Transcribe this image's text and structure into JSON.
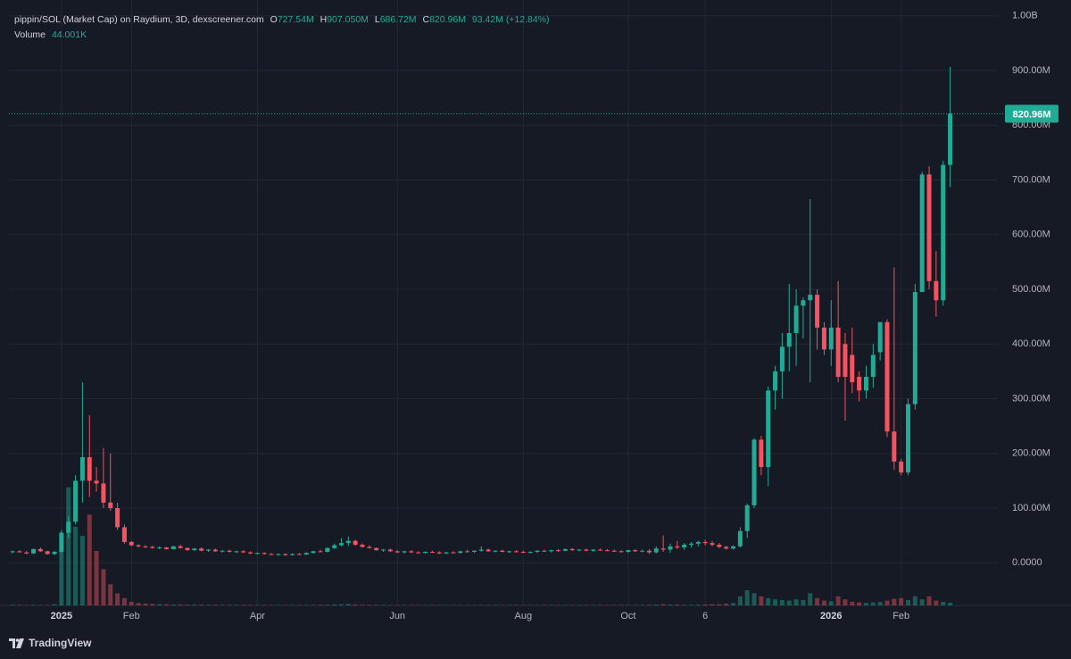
{
  "legend": {
    "title": "pippin/SOL (Market Cap) on Raydium, 3D, dexscreener.com",
    "ohlc_labels": [
      {
        "key": "O",
        "value": "727.54M"
      },
      {
        "key": "H",
        "value": "907.050M"
      },
      {
        "key": "L",
        "value": "686.72M"
      },
      {
        "key": "C",
        "value": "820.96M"
      }
    ],
    "change": "93.42M (+12.84%)",
    "volume_label": "Volume",
    "volume_value": "44.001K"
  },
  "brand": "TradingView",
  "chart_data": {
    "type": "candlestick",
    "up_color": "#22ab94",
    "down_color": "#f7525f",
    "grid": true,
    "ylim": [
      -78,
      1029
    ],
    "yticks": [
      {
        "value": 0,
        "label": "0.0000"
      },
      {
        "value": 100,
        "label": "100.00M"
      },
      {
        "value": 200,
        "label": "200.00M"
      },
      {
        "value": 300,
        "label": "300.00M"
      },
      {
        "value": 400,
        "label": "400.00M"
      },
      {
        "value": 500,
        "label": "500.00M"
      },
      {
        "value": 600,
        "label": "600.00M"
      },
      {
        "value": 700,
        "label": "700.00M"
      },
      {
        "value": 800,
        "label": "800.00M"
      },
      {
        "value": 900,
        "label": "900.00M"
      },
      {
        "value": 1000,
        "label": "1.00B"
      }
    ],
    "last_price": {
      "value": 820.96,
      "label": "820.96M"
    },
    "categories": [
      null,
      null,
      null,
      null,
      null,
      null,
      null,
      "2025",
      null,
      null,
      null,
      null,
      null,
      null,
      null,
      null,
      null,
      "Feb",
      null,
      null,
      null,
      null,
      null,
      null,
      null,
      null,
      null,
      null,
      null,
      null,
      null,
      null,
      null,
      null,
      null,
      "Apr",
      null,
      null,
      null,
      null,
      null,
      null,
      null,
      null,
      null,
      null,
      null,
      null,
      null,
      null,
      null,
      null,
      null,
      null,
      null,
      "Jun",
      null,
      null,
      null,
      null,
      null,
      null,
      null,
      null,
      null,
      null,
      null,
      null,
      null,
      null,
      null,
      null,
      null,
      "Aug",
      null,
      null,
      null,
      null,
      null,
      null,
      null,
      null,
      null,
      null,
      null,
      null,
      null,
      null,
      "Oct",
      null,
      null,
      null,
      null,
      null,
      null,
      null,
      null,
      null,
      null,
      "6",
      null,
      null,
      null,
      null,
      null,
      null,
      null,
      null,
      null,
      null,
      null,
      null,
      null,
      null,
      null,
      null,
      null,
      "2026",
      null,
      null,
      null,
      null,
      null,
      null,
      null,
      null,
      null,
      "Feb",
      null,
      null,
      null,
      null,
      null,
      null,
      null
    ],
    "ohlc": [
      [
        20,
        22,
        17,
        21
      ],
      [
        21,
        23,
        19,
        19
      ],
      [
        19,
        21,
        16,
        17
      ],
      [
        17,
        26,
        16,
        25
      ],
      [
        25,
        28,
        20,
        21
      ],
      [
        21,
        22,
        15,
        16
      ],
      [
        16,
        22,
        14,
        20
      ],
      [
        20,
        60,
        18,
        55
      ],
      [
        55,
        85,
        45,
        75
      ],
      [
        75,
        160,
        70,
        150
      ],
      [
        150,
        330,
        110,
        193
      ],
      [
        193,
        270,
        120,
        150
      ],
      [
        150,
        175,
        130,
        145
      ],
      [
        145,
        210,
        100,
        110
      ],
      [
        110,
        200,
        95,
        100
      ],
      [
        100,
        110,
        60,
        65
      ],
      [
        65,
        70,
        35,
        38
      ],
      [
        38,
        40,
        30,
        32
      ],
      [
        32,
        34,
        28,
        30
      ],
      [
        30,
        32,
        27,
        29
      ],
      [
        29,
        31,
        26,
        27
      ],
      [
        27,
        30,
        25,
        28
      ],
      [
        28,
        29,
        24,
        25
      ],
      [
        25,
        31,
        24,
        30
      ],
      [
        30,
        33,
        26,
        27
      ],
      [
        27,
        28,
        22,
        23
      ],
      [
        23,
        27,
        22,
        26
      ],
      [
        26,
        28,
        21,
        22
      ],
      [
        22,
        25,
        20,
        24
      ],
      [
        24,
        26,
        20,
        21
      ],
      [
        21,
        23,
        19,
        22
      ],
      [
        22,
        24,
        19,
        20
      ],
      [
        20,
        22,
        18,
        21
      ],
      [
        21,
        23,
        18,
        19
      ],
      [
        19,
        21,
        16,
        17
      ],
      [
        17,
        19,
        15,
        18
      ],
      [
        18,
        19,
        15,
        16
      ],
      [
        16,
        18,
        14,
        15
      ],
      [
        15,
        17,
        13,
        16
      ],
      [
        16,
        17,
        13,
        14
      ],
      [
        14,
        17,
        13,
        16
      ],
      [
        16,
        18,
        14,
        15
      ],
      [
        15,
        19,
        14,
        18
      ],
      [
        18,
        22,
        17,
        21
      ],
      [
        21,
        24,
        19,
        20
      ],
      [
        20,
        28,
        19,
        27
      ],
      [
        27,
        35,
        25,
        32
      ],
      [
        32,
        45,
        30,
        36
      ],
      [
        36,
        48,
        30,
        40
      ],
      [
        40,
        42,
        31,
        33
      ],
      [
        33,
        35,
        28,
        29
      ],
      [
        29,
        32,
        26,
        27
      ],
      [
        27,
        28,
        22,
        23
      ],
      [
        23,
        25,
        20,
        24
      ],
      [
        24,
        26,
        20,
        21
      ],
      [
        21,
        23,
        18,
        19
      ],
      [
        19,
        22,
        17,
        21
      ],
      [
        21,
        23,
        18,
        19
      ],
      [
        19,
        21,
        17,
        18
      ],
      [
        18,
        21,
        17,
        20
      ],
      [
        20,
        22,
        18,
        19
      ],
      [
        19,
        21,
        16,
        17
      ],
      [
        17,
        20,
        16,
        19
      ],
      [
        19,
        21,
        17,
        18
      ],
      [
        18,
        22,
        17,
        21
      ],
      [
        21,
        24,
        19,
        20
      ],
      [
        20,
        23,
        18,
        22
      ],
      [
        22,
        30,
        20,
        24
      ],
      [
        24,
        26,
        20,
        21
      ],
      [
        21,
        23,
        19,
        22
      ],
      [
        22,
        24,
        19,
        20
      ],
      [
        20,
        22,
        18,
        21
      ],
      [
        21,
        23,
        19,
        20
      ],
      [
        20,
        22,
        18,
        19
      ],
      [
        19,
        21,
        17,
        20
      ],
      [
        20,
        23,
        18,
        22
      ],
      [
        22,
        24,
        20,
        21
      ],
      [
        21,
        24,
        19,
        23
      ],
      [
        23,
        25,
        20,
        22
      ],
      [
        22,
        26,
        21,
        25
      ],
      [
        25,
        27,
        22,
        23
      ],
      [
        23,
        25,
        21,
        24
      ],
      [
        24,
        26,
        21,
        22
      ],
      [
        22,
        25,
        20,
        24
      ],
      [
        24,
        26,
        22,
        23
      ],
      [
        23,
        25,
        21,
        22
      ],
      [
        22,
        24,
        20,
        21
      ],
      [
        21,
        23,
        19,
        20
      ],
      [
        20,
        24,
        18,
        23
      ],
      [
        23,
        25,
        20,
        21
      ],
      [
        21,
        24,
        19,
        22
      ],
      [
        22,
        25,
        16,
        19
      ],
      [
        19,
        30,
        17,
        26
      ],
      [
        26,
        50,
        20,
        24
      ],
      [
        24,
        35,
        18,
        30
      ],
      [
        30,
        40,
        25,
        28
      ],
      [
        28,
        36,
        24,
        33
      ],
      [
        33,
        38,
        28,
        35
      ],
      [
        35,
        40,
        30,
        38
      ],
      [
        38,
        42,
        32,
        36
      ],
      [
        36,
        40,
        30,
        33
      ],
      [
        33,
        36,
        27,
        29
      ],
      [
        29,
        31,
        24,
        26
      ],
      [
        26,
        32,
        24,
        30
      ],
      [
        30,
        65,
        28,
        58
      ],
      [
        58,
        108,
        45,
        105
      ],
      [
        105,
        228,
        100,
        225
      ],
      [
        225,
        232,
        160,
        175
      ],
      [
        175,
        322,
        140,
        315
      ],
      [
        315,
        360,
        280,
        350
      ],
      [
        350,
        420,
        300,
        395
      ],
      [
        395,
        510,
        350,
        420
      ],
      [
        420,
        500,
        360,
        470
      ],
      [
        470,
        485,
        410,
        480
      ],
      [
        480,
        665,
        330,
        490
      ],
      [
        490,
        500,
        390,
        430
      ],
      [
        430,
        440,
        380,
        390
      ],
      [
        390,
        480,
        360,
        430
      ],
      [
        430,
        515,
        330,
        340
      ],
      [
        400,
        420,
        260,
        340
      ],
      [
        380,
        430,
        310,
        330
      ],
      [
        340,
        350,
        295,
        315
      ],
      [
        315,
        360,
        300,
        340
      ],
      [
        340,
        400,
        320,
        380
      ],
      [
        385,
        440,
        370,
        440
      ],
      [
        440,
        445,
        230,
        240
      ],
      [
        240,
        540,
        170,
        185
      ],
      [
        185,
        190,
        160,
        165
      ],
      [
        165,
        300,
        160,
        290
      ],
      [
        290,
        510,
        280,
        495
      ],
      [
        495,
        715,
        495,
        710
      ],
      [
        710,
        725,
        500,
        515
      ],
      [
        515,
        570,
        450,
        480
      ],
      [
        480,
        735,
        470,
        727.54
      ],
      [
        727.54,
        907.05,
        686.72,
        820.96
      ]
    ],
    "volume_ylim": [
      0,
      10000
    ],
    "volume": [
      10,
      8,
      6,
      8,
      6,
      5,
      20,
      900,
      1950,
      1300,
      1150,
      1500,
      900,
      600,
      350,
      200,
      120,
      60,
      40,
      30,
      25,
      20,
      18,
      15,
      15,
      12,
      12,
      10,
      10,
      10,
      9,
      9,
      8,
      8,
      8,
      8,
      7,
      7,
      7,
      7,
      7,
      7,
      8,
      9,
      10,
      12,
      15,
      20,
      25,
      15,
      10,
      9,
      8,
      8,
      7,
      7,
      7,
      7,
      6,
      6,
      6,
      6,
      6,
      6,
      6,
      6,
      6,
      8,
      6,
      6,
      6,
      6,
      6,
      6,
      6,
      6,
      6,
      6,
      6,
      6,
      6,
      6,
      6,
      6,
      6,
      6,
      6,
      6,
      6,
      6,
      8,
      10,
      15,
      20,
      15,
      12,
      10,
      10,
      12,
      15,
      20,
      20,
      30,
      40,
      150,
      250,
      200,
      150,
      120,
      100,
      90,
      80,
      100,
      90,
      200,
      120,
      80,
      70,
      150,
      100,
      60,
      50,
      40,
      50,
      60,
      80,
      110,
      120,
      90,
      150,
      100,
      150,
      80,
      60,
      44.001
    ]
  }
}
